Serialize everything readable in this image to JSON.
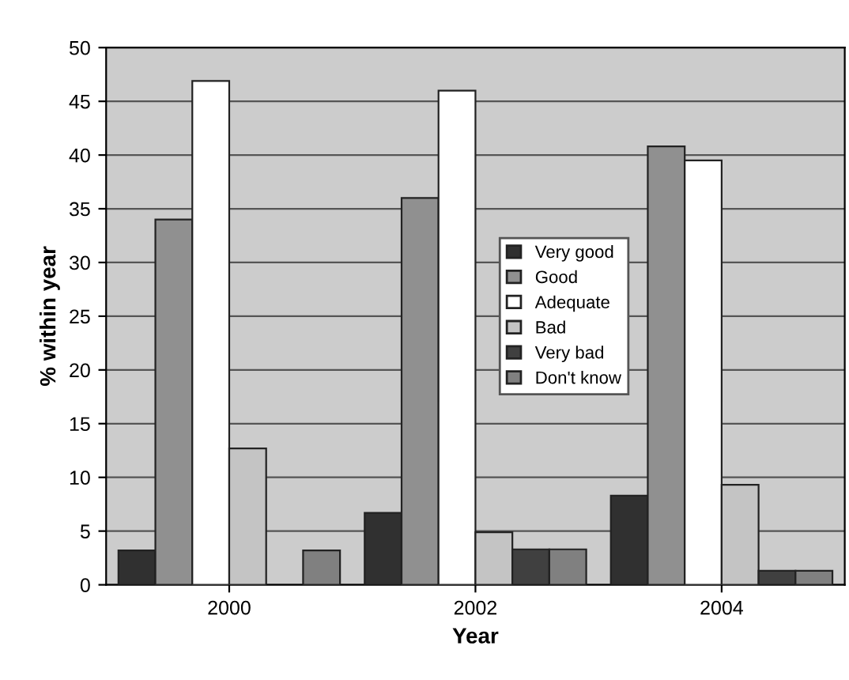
{
  "chart_data": {
    "type": "bar",
    "xlabel": "Year",
    "ylabel": "% within year",
    "categories": [
      "2000",
      "2002",
      "2004"
    ],
    "series": [
      {
        "name": "Very good",
        "color": "#303030",
        "values": [
          3.2,
          6.7,
          8.3
        ]
      },
      {
        "name": "Good",
        "color": "#909090",
        "values": [
          34,
          36,
          40.8
        ]
      },
      {
        "name": "Adequate",
        "color": "#ffffff",
        "values": [
          46.9,
          46,
          39.5
        ]
      },
      {
        "name": "Bad",
        "color": "#c4c4c4",
        "values": [
          12.7,
          4.9,
          9.3
        ]
      },
      {
        "name": "Very bad",
        "color": "#404040",
        "values": [
          null,
          3.3,
          1.3
        ]
      },
      {
        "name": "Don't know",
        "color": "#808080",
        "values": [
          3.2,
          3.3,
          1.3
        ]
      }
    ],
    "ylim": [
      0,
      50
    ],
    "yticks": [
      0,
      5,
      10,
      15,
      20,
      25,
      30,
      35,
      40,
      45,
      50
    ],
    "grid": "y",
    "legend": "center"
  }
}
